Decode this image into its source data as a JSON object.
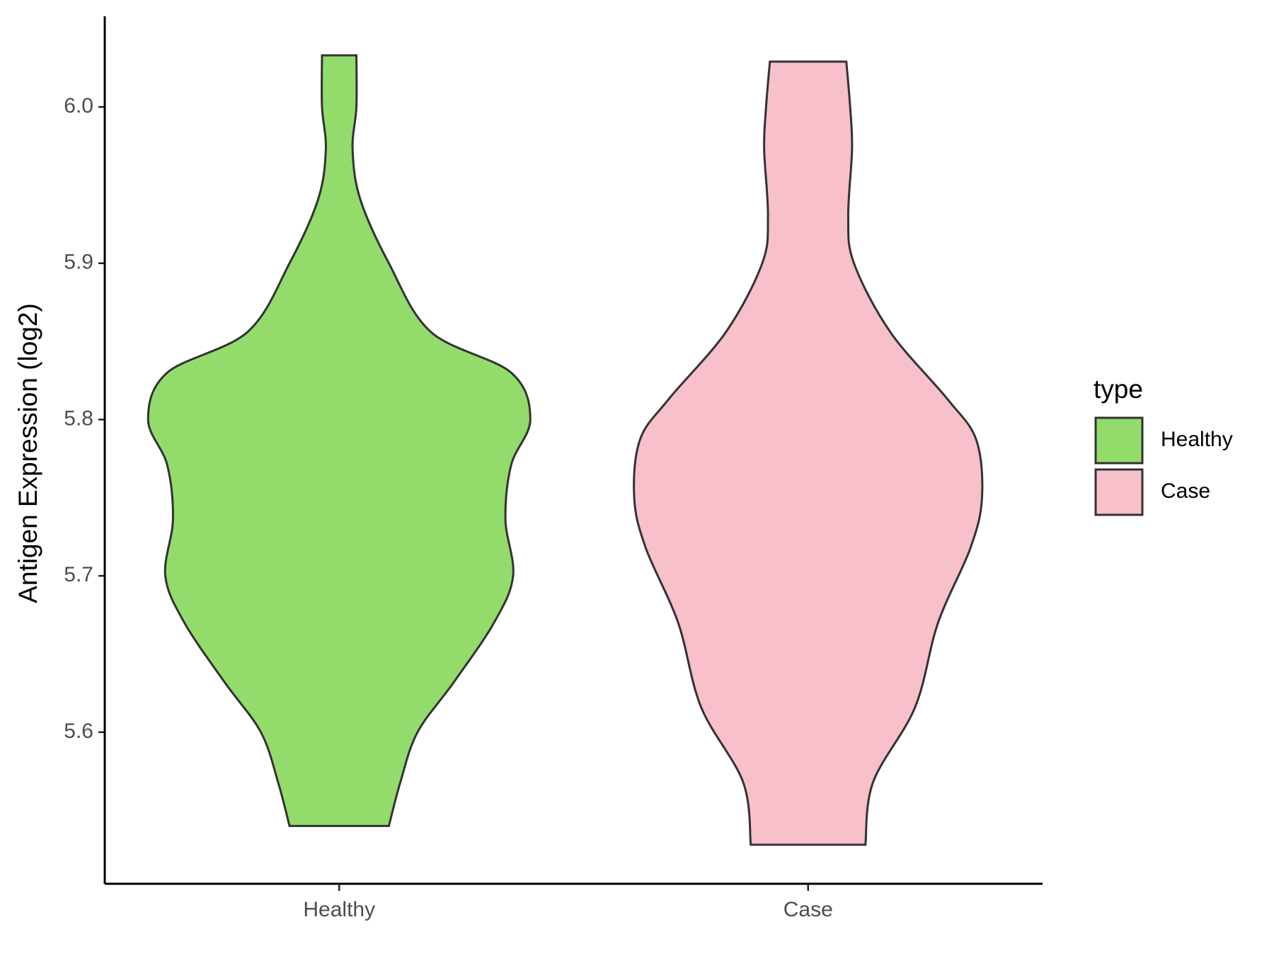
{
  "chart_data": {
    "type": "violin",
    "y_label": "Antigen Expression (log2)",
    "categories": [
      "Healthy",
      "Case"
    ],
    "legend_title": "type",
    "legend_position": "right",
    "ylim": [
      5.503,
      6.058
    ],
    "yticks": [
      {
        "value": 5.6,
        "label": "5.6"
      },
      {
        "value": 5.7,
        "label": "5.7"
      },
      {
        "value": 5.8,
        "label": "5.8"
      },
      {
        "value": 5.9,
        "label": "5.9"
      },
      {
        "value": 6.0,
        "label": "6.0"
      }
    ],
    "series": [
      {
        "name": "Healthy",
        "color": "#93dc6b",
        "y": [
          6.033,
          6.0,
          5.973,
          5.941,
          5.9,
          5.856,
          5.83,
          5.8,
          5.771,
          5.736,
          5.7,
          5.67,
          5.632,
          5.6,
          5.568,
          5.54
        ],
        "width": [
          0.09,
          0.09,
          0.07,
          0.11,
          0.26,
          0.48,
          0.9,
          1.0,
          0.9,
          0.87,
          0.91,
          0.81,
          0.6,
          0.41,
          0.32,
          0.26
        ]
      },
      {
        "name": "Case",
        "color": "#f7c0cb",
        "y": [
          6.029,
          6.0,
          5.973,
          5.93,
          5.9,
          5.856,
          5.813,
          5.787,
          5.75,
          5.718,
          5.67,
          5.616,
          5.568,
          5.528
        ],
        "width": [
          0.2,
          0.22,
          0.23,
          0.21,
          0.24,
          0.43,
          0.73,
          0.88,
          0.91,
          0.85,
          0.68,
          0.56,
          0.34,
          0.3
        ]
      }
    ]
  }
}
